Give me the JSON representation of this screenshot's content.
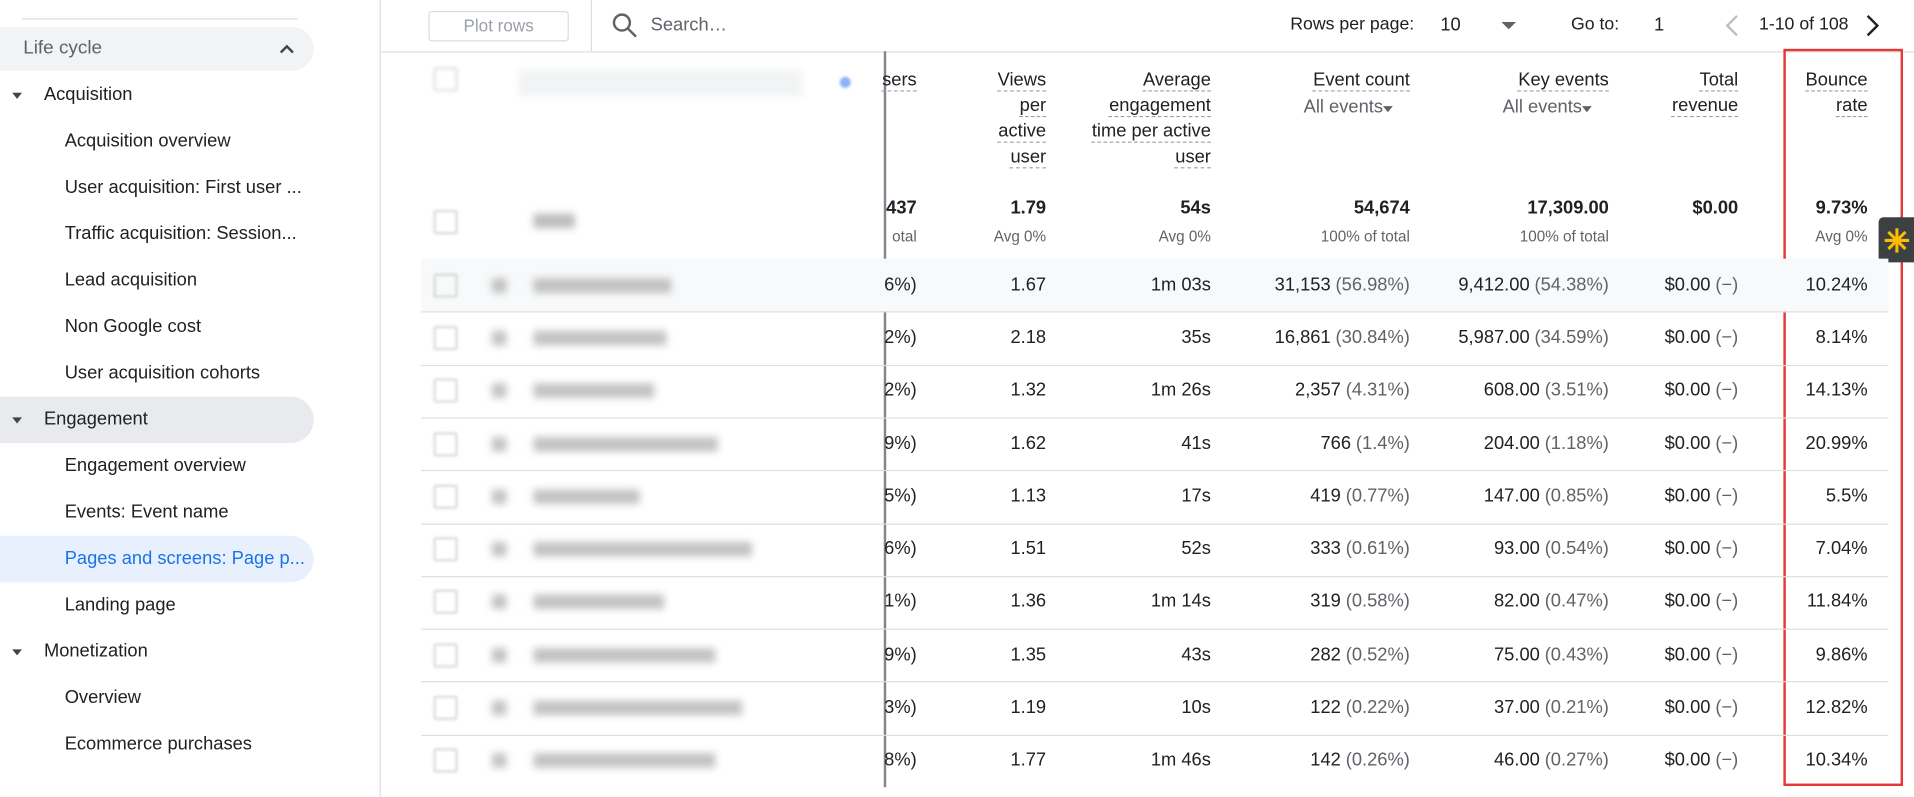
{
  "sidebar": {
    "section": "Life cycle",
    "groups": [
      {
        "label": "Acquisition",
        "items": [
          "Acquisition overview",
          "User acquisition: First user ...",
          "Traffic acquisition: Session...",
          "Lead acquisition",
          "Non Google cost",
          "User acquisition cohorts"
        ]
      },
      {
        "label": "Engagement",
        "items": [
          "Engagement overview",
          "Events: Event name",
          "Pages and screens: Page p...",
          "Landing page"
        ]
      },
      {
        "label": "Monetization",
        "items": [
          "Overview",
          "Ecommerce purchases"
        ]
      }
    ]
  },
  "toolbar": {
    "plot_rows": "Plot rows",
    "search_placeholder": "Search…",
    "rows_per_page_label": "Rows per page:",
    "rows_per_page": "10",
    "go_to_label": "Go to:",
    "go_to": "1",
    "range": "1-10 of 108"
  },
  "table": {
    "headers": {
      "partial": "sers",
      "views": "Views per active user",
      "engagement": "Average engagement time per active user",
      "event_count": "Event count",
      "event_count_filter": "All events",
      "key_events": "Key events",
      "key_events_filter": "All events",
      "revenue": "Total revenue",
      "bounce": "Bounce rate"
    },
    "totals": {
      "partial": "437",
      "partial_sub": "otal",
      "views": "1.79",
      "views_sub": "Avg 0%",
      "engagement": "54s",
      "engagement_sub": "Avg 0%",
      "event_count": "54,674",
      "event_count_sub": "100% of total",
      "key_events": "17,309.00",
      "key_events_sub": "100% of total",
      "revenue": "$0.00",
      "bounce": "9.73%",
      "bounce_sub": "Avg 0%"
    },
    "rows": [
      {
        "partial": "6%)",
        "views": "1.67",
        "engagement": "1m 03s",
        "event_count": "31,153",
        "event_pct": "(56.98%)",
        "key_events": "9,412.00",
        "key_pct": "(54.38%)",
        "revenue": "$0.00",
        "revenue_pct": "(−)",
        "bounce": "10.24%"
      },
      {
        "partial": "2%)",
        "views": "2.18",
        "engagement": "35s",
        "event_count": "16,861",
        "event_pct": "(30.84%)",
        "key_events": "5,987.00",
        "key_pct": "(34.59%)",
        "revenue": "$0.00",
        "revenue_pct": "(−)",
        "bounce": "8.14%"
      },
      {
        "partial": "2%)",
        "views": "1.32",
        "engagement": "1m 26s",
        "event_count": "2,357",
        "event_pct": "(4.31%)",
        "key_events": "608.00",
        "key_pct": "(3.51%)",
        "revenue": "$0.00",
        "revenue_pct": "(−)",
        "bounce": "14.13%"
      },
      {
        "partial": "9%)",
        "views": "1.62",
        "engagement": "41s",
        "event_count": "766",
        "event_pct": "(1.4%)",
        "key_events": "204.00",
        "key_pct": "(1.18%)",
        "revenue": "$0.00",
        "revenue_pct": "(−)",
        "bounce": "20.99%"
      },
      {
        "partial": "5%)",
        "views": "1.13",
        "engagement": "17s",
        "event_count": "419",
        "event_pct": "(0.77%)",
        "key_events": "147.00",
        "key_pct": "(0.85%)",
        "revenue": "$0.00",
        "revenue_pct": "(−)",
        "bounce": "5.5%"
      },
      {
        "partial": "6%)",
        "views": "1.51",
        "engagement": "52s",
        "event_count": "333",
        "event_pct": "(0.61%)",
        "key_events": "93.00",
        "key_pct": "(0.54%)",
        "revenue": "$0.00",
        "revenue_pct": "(−)",
        "bounce": "7.04%"
      },
      {
        "partial": "1%)",
        "views": "1.36",
        "engagement": "1m 14s",
        "event_count": "319",
        "event_pct": "(0.58%)",
        "key_events": "82.00",
        "key_pct": "(0.47%)",
        "revenue": "$0.00",
        "revenue_pct": "(−)",
        "bounce": "11.84%"
      },
      {
        "partial": "9%)",
        "views": "1.35",
        "engagement": "43s",
        "event_count": "282",
        "event_pct": "(0.52%)",
        "key_events": "75.00",
        "key_pct": "(0.43%)",
        "revenue": "$0.00",
        "revenue_pct": "(−)",
        "bounce": "9.86%"
      },
      {
        "partial": "3%)",
        "views": "1.19",
        "engagement": "10s",
        "event_count": "122",
        "event_pct": "(0.22%)",
        "key_events": "37.00",
        "key_pct": "(0.21%)",
        "revenue": "$0.00",
        "revenue_pct": "(−)",
        "bounce": "12.82%"
      },
      {
        "partial": "8%)",
        "views": "1.77",
        "engagement": "1m 46s",
        "event_count": "142",
        "event_pct": "(0.26%)",
        "key_events": "46.00",
        "key_pct": "(0.27%)",
        "revenue": "$0.00",
        "revenue_pct": "(−)",
        "bounce": "10.34%"
      }
    ]
  }
}
